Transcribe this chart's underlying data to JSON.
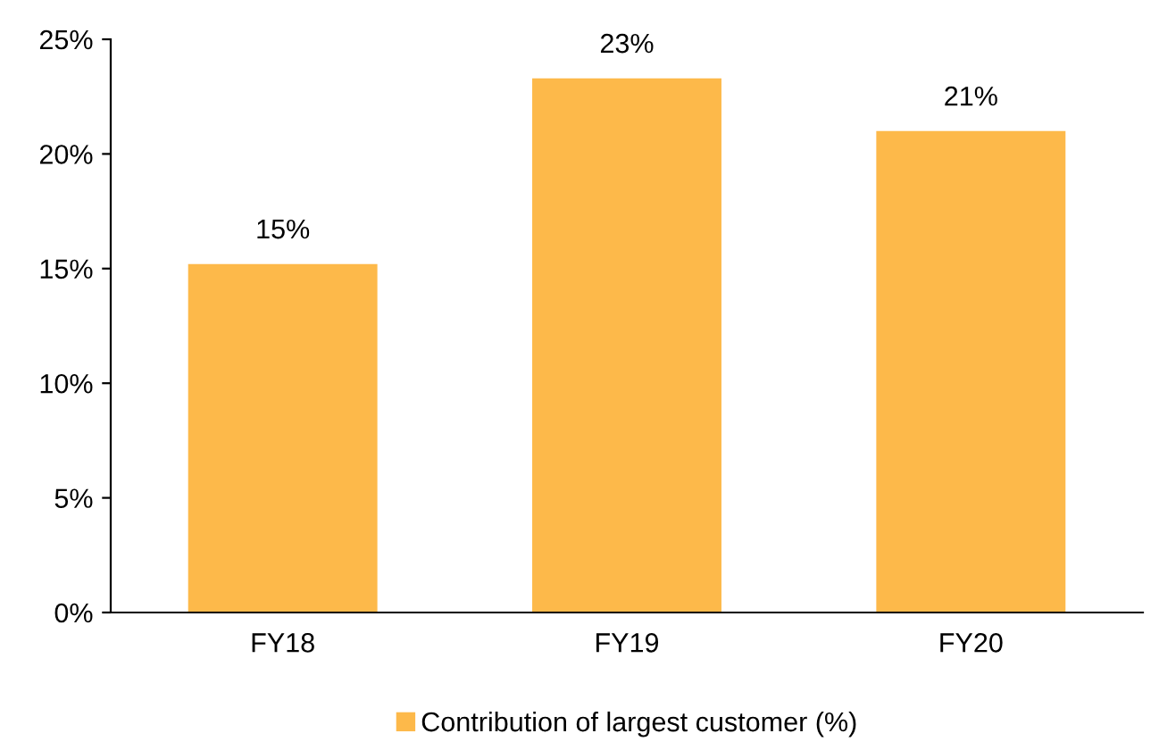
{
  "chart_data": {
    "type": "bar",
    "categories": [
      "FY18",
      "FY19",
      "FY20"
    ],
    "series": [
      {
        "name": "Contribution of largest customer (%)",
        "color": "#fdb94a",
        "values": [
          15.2,
          23.3,
          21.0
        ],
        "value_labels": [
          "15%",
          "23%",
          "21%"
        ]
      }
    ],
    "ylim": [
      0,
      25
    ],
    "yticks": [
      {
        "value": 0,
        "label": "0%"
      },
      {
        "value": 5,
        "label": "5%"
      },
      {
        "value": 10,
        "label": "10%"
      },
      {
        "value": 15,
        "label": "15%"
      },
      {
        "value": 20,
        "label": "20%"
      },
      {
        "value": 25,
        "label": "25%"
      }
    ],
    "grid": false,
    "legend": "bottom"
  }
}
